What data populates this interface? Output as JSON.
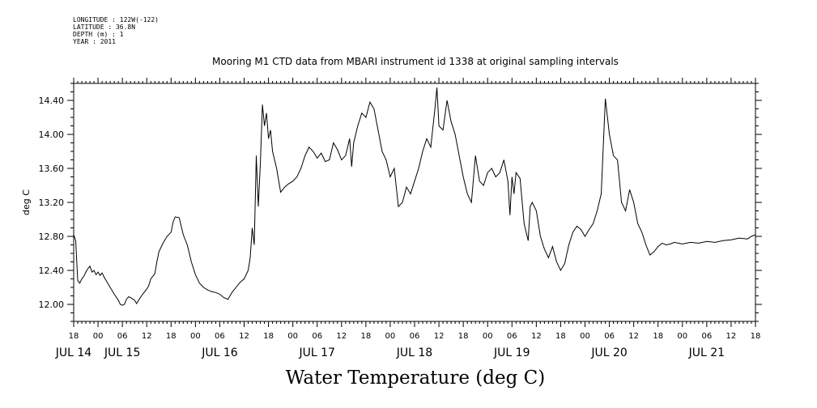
{
  "header": {
    "longitude": "LONGITUDE : 122W(-122)",
    "latitude": "LATITUDE : 36.8N",
    "depth": "DEPTH (m) : 1",
    "year": "YEAR : 2011"
  },
  "chart_data": {
    "type": "line",
    "title": "Mooring M1 CTD data from MBARI instrument id 1338 at original sampling intervals",
    "xlabel": "Water Temperature (deg C)",
    "ylabel": "deg C",
    "ylim": [
      11.8,
      14.6
    ],
    "yticks": [
      "12.00",
      "12.40",
      "12.80",
      "13.20",
      "13.60",
      "14.00",
      "14.40"
    ],
    "x_unit": "hours since JUL 14 18:00",
    "xlim": [
      0,
      168
    ],
    "hour_ticks": [
      "18",
      "00",
      "06",
      "12",
      "18",
      "00",
      "06",
      "12",
      "18",
      "00",
      "06",
      "12",
      "18",
      "00",
      "06",
      "12",
      "18",
      "00",
      "06",
      "12",
      "18",
      "00",
      "06",
      "12",
      "18",
      "00",
      "06",
      "12",
      "18"
    ],
    "day_labels": [
      {
        "label": "JUL 14",
        "at": 0
      },
      {
        "label": "JUL 15",
        "at": 12
      },
      {
        "label": "JUL 16",
        "at": 36
      },
      {
        "label": "JUL 17",
        "at": 60
      },
      {
        "label": "JUL 18",
        "at": 84
      },
      {
        "label": "JUL 19",
        "at": 108
      },
      {
        "label": "JUL 20",
        "at": 132
      },
      {
        "label": "JUL 21",
        "at": 156
      }
    ],
    "series": [
      {
        "name": "Water Temperature",
        "points": [
          [
            0,
            12.82
          ],
          [
            0.5,
            12.75
          ],
          [
            1,
            12.28
          ],
          [
            1.5,
            12.25
          ],
          [
            2,
            12.3
          ],
          [
            2.5,
            12.33
          ],
          [
            3,
            12.38
          ],
          [
            3.5,
            12.42
          ],
          [
            4,
            12.45
          ],
          [
            4.5,
            12.38
          ],
          [
            5,
            12.4
          ],
          [
            5.5,
            12.35
          ],
          [
            6,
            12.38
          ],
          [
            6.5,
            12.34
          ],
          [
            7,
            12.37
          ],
          [
            7.5,
            12.32
          ],
          [
            8,
            12.28
          ],
          [
            9,
            12.2
          ],
          [
            10,
            12.12
          ],
          [
            11,
            12.05
          ],
          [
            11.5,
            12.0
          ],
          [
            12,
            11.99
          ],
          [
            12.5,
            12.0
          ],
          [
            13,
            12.06
          ],
          [
            13.5,
            12.09
          ],
          [
            14,
            12.08
          ],
          [
            15,
            12.05
          ],
          [
            15.5,
            12.01
          ],
          [
            16,
            12.05
          ],
          [
            17,
            12.12
          ],
          [
            18,
            12.18
          ],
          [
            18.5,
            12.22
          ],
          [
            19,
            12.3
          ],
          [
            20,
            12.36
          ],
          [
            20.5,
            12.5
          ],
          [
            21,
            12.62
          ],
          [
            22,
            12.72
          ],
          [
            23,
            12.8
          ],
          [
            24,
            12.85
          ],
          [
            24.5,
            12.97
          ],
          [
            25,
            13.03
          ],
          [
            26,
            13.02
          ],
          [
            27,
            12.82
          ],
          [
            28,
            12.7
          ],
          [
            29,
            12.5
          ],
          [
            30,
            12.35
          ],
          [
            31,
            12.25
          ],
          [
            32,
            12.2
          ],
          [
            33,
            12.17
          ],
          [
            34,
            12.15
          ],
          [
            35,
            12.14
          ],
          [
            36,
            12.12
          ],
          [
            37,
            12.08
          ],
          [
            38,
            12.06
          ],
          [
            39,
            12.14
          ],
          [
            40,
            12.2
          ],
          [
            41,
            12.26
          ],
          [
            42,
            12.3
          ],
          [
            43,
            12.4
          ],
          [
            43.5,
            12.55
          ],
          [
            44,
            12.9
          ],
          [
            44.5,
            12.7
          ],
          [
            45,
            13.75
          ],
          [
            45.5,
            13.15
          ],
          [
            46,
            13.65
          ],
          [
            46.5,
            14.35
          ],
          [
            47,
            14.1
          ],
          [
            47.5,
            14.25
          ],
          [
            48,
            13.95
          ],
          [
            48.5,
            14.05
          ],
          [
            49,
            13.8
          ],
          [
            50,
            13.6
          ],
          [
            51,
            13.32
          ],
          [
            52,
            13.38
          ],
          [
            53,
            13.42
          ],
          [
            54,
            13.45
          ],
          [
            55,
            13.5
          ],
          [
            56,
            13.6
          ],
          [
            57,
            13.75
          ],
          [
            58,
            13.85
          ],
          [
            59,
            13.8
          ],
          [
            60,
            13.72
          ],
          [
            61,
            13.78
          ],
          [
            62,
            13.68
          ],
          [
            63,
            13.7
          ],
          [
            64,
            13.9
          ],
          [
            65,
            13.82
          ],
          [
            66,
            13.7
          ],
          [
            67,
            13.75
          ],
          [
            68,
            13.95
          ],
          [
            68.5,
            13.62
          ],
          [
            69,
            13.9
          ],
          [
            70,
            14.1
          ],
          [
            71,
            14.25
          ],
          [
            72,
            14.2
          ],
          [
            73,
            14.38
          ],
          [
            74,
            14.3
          ],
          [
            75,
            14.05
          ],
          [
            76,
            13.8
          ],
          [
            77,
            13.7
          ],
          [
            78,
            13.5
          ],
          [
            79,
            13.6
          ],
          [
            80,
            13.15
          ],
          [
            81,
            13.2
          ],
          [
            82,
            13.38
          ],
          [
            83,
            13.3
          ],
          [
            84,
            13.45
          ],
          [
            85,
            13.6
          ],
          [
            86,
            13.8
          ],
          [
            87,
            13.95
          ],
          [
            88,
            13.85
          ],
          [
            89,
            14.3
          ],
          [
            89.5,
            14.55
          ],
          [
            90,
            14.1
          ],
          [
            91,
            14.05
          ],
          [
            92,
            14.4
          ],
          [
            93,
            14.15
          ],
          [
            94,
            14.0
          ],
          [
            95,
            13.75
          ],
          [
            96,
            13.5
          ],
          [
            97,
            13.3
          ],
          [
            98,
            13.2
          ],
          [
            99,
            13.75
          ],
          [
            100,
            13.45
          ],
          [
            101,
            13.4
          ],
          [
            102,
            13.55
          ],
          [
            103,
            13.6
          ],
          [
            104,
            13.5
          ],
          [
            105,
            13.55
          ],
          [
            106,
            13.7
          ],
          [
            107,
            13.45
          ],
          [
            107.5,
            13.05
          ],
          [
            108,
            13.5
          ],
          [
            108.5,
            13.3
          ],
          [
            109,
            13.55
          ],
          [
            110,
            13.48
          ],
          [
            111,
            12.95
          ],
          [
            112,
            12.75
          ],
          [
            112.5,
            13.15
          ],
          [
            113,
            13.2
          ],
          [
            114,
            13.1
          ],
          [
            115,
            12.8
          ],
          [
            116,
            12.65
          ],
          [
            117,
            12.55
          ],
          [
            118,
            12.68
          ],
          [
            119,
            12.5
          ],
          [
            120,
            12.4
          ],
          [
            121,
            12.48
          ],
          [
            122,
            12.7
          ],
          [
            123,
            12.85
          ],
          [
            124,
            12.92
          ],
          [
            125,
            12.88
          ],
          [
            126,
            12.8
          ],
          [
            127,
            12.88
          ],
          [
            128,
            12.95
          ],
          [
            129,
            13.1
          ],
          [
            130,
            13.3
          ],
          [
            131,
            14.42
          ],
          [
            132,
            14.0
          ],
          [
            133,
            13.75
          ],
          [
            134,
            13.7
          ],
          [
            135,
            13.2
          ],
          [
            136,
            13.1
          ],
          [
            137,
            13.35
          ],
          [
            138,
            13.2
          ],
          [
            139,
            12.95
          ],
          [
            140,
            12.85
          ],
          [
            141,
            12.7
          ],
          [
            142,
            12.58
          ],
          [
            143,
            12.62
          ],
          [
            144,
            12.68
          ],
          [
            145,
            12.72
          ],
          [
            146,
            12.7
          ],
          [
            147,
            12.71
          ],
          [
            148,
            12.73
          ],
          [
            150,
            12.71
          ],
          [
            152,
            12.73
          ],
          [
            154,
            12.72
          ],
          [
            156,
            12.74
          ],
          [
            158,
            12.73
          ],
          [
            160,
            12.75
          ],
          [
            162,
            12.76
          ],
          [
            164,
            12.78
          ],
          [
            166,
            12.77
          ],
          [
            167,
            12.8
          ],
          [
            168,
            12.82
          ]
        ]
      }
    ]
  }
}
